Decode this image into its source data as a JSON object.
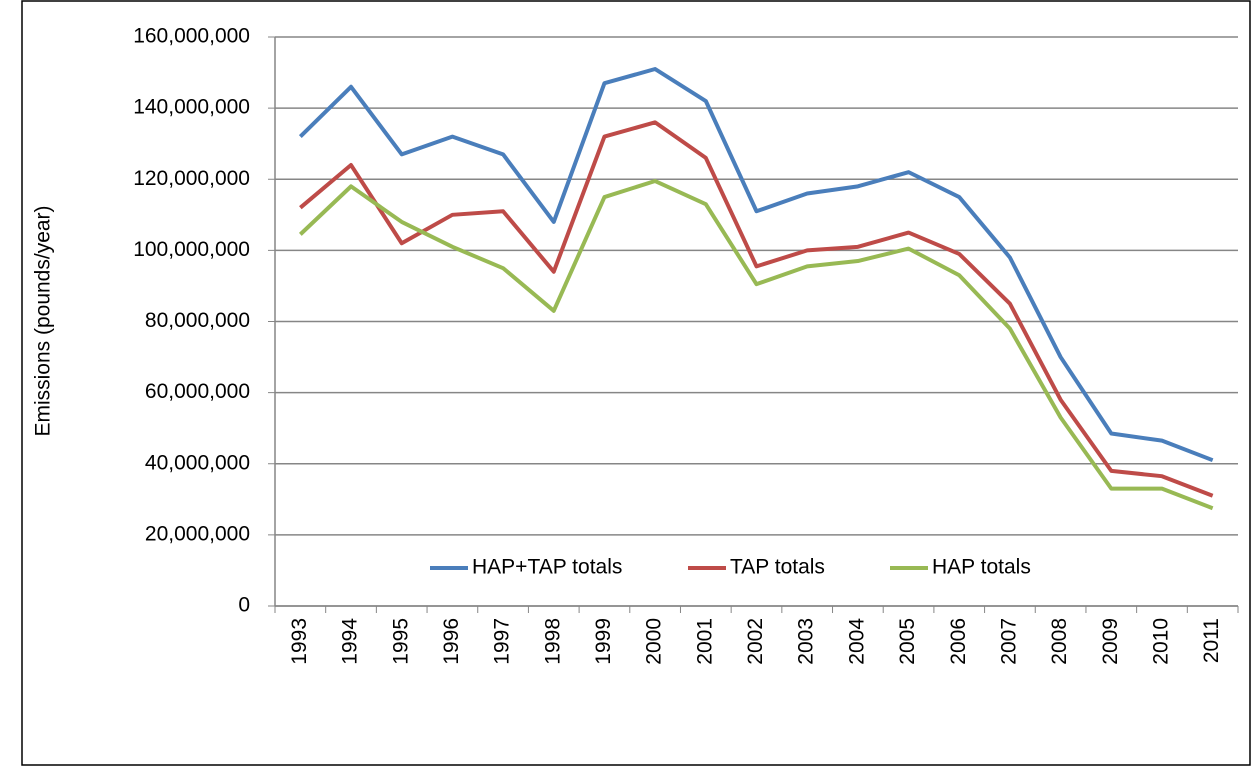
{
  "chart_data": {
    "type": "line",
    "y_label": "Emissions (pounds/year)",
    "categories": [
      "1993",
      "1994",
      "1995",
      "1996",
      "1997",
      "1998",
      "1999",
      "2000",
      "2001",
      "2002",
      "2003",
      "2004",
      "2005",
      "2006",
      "2007",
      "2008",
      "2009",
      "2010",
      "2011"
    ],
    "series": [
      {
        "name": "HAP+TAP totals",
        "color": "#4a7ebb",
        "values": [
          132000000,
          146000000,
          127000000,
          132000000,
          127000000,
          108000000,
          147000000,
          151000000,
          142000000,
          111000000,
          116000000,
          118000000,
          122000000,
          115000000,
          98000000,
          70000000,
          48500000,
          46500000,
          41000000
        ]
      },
      {
        "name": "TAP totals",
        "color": "#be4b48",
        "values": [
          112000000,
          124000000,
          102000000,
          110000000,
          111000000,
          94000000,
          132000000,
          136000000,
          126000000,
          95500000,
          100000000,
          101000000,
          105000000,
          99000000,
          85000000,
          58000000,
          38000000,
          36500000,
          31000000
        ]
      },
      {
        "name": "HAP totals",
        "color": "#98b954",
        "values": [
          104500000,
          118000000,
          108000000,
          101000000,
          95000000,
          83000000,
          115000000,
          119500000,
          113000000,
          90500000,
          95500000,
          97000000,
          100500000,
          93000000,
          78000000,
          53000000,
          33000000,
          33000000,
          27500000
        ]
      }
    ],
    "ylim": [
      0,
      160000000
    ],
    "yticks": [
      0,
      {
        "value": 20000000,
        "label": "20,000,000"
      },
      {
        "value": 40000000,
        "label": "40,000,000"
      },
      {
        "value": 60000000,
        "label": "60,000,000"
      },
      {
        "value": 80000000,
        "label": "80,000,000"
      },
      {
        "value": 100000000,
        "label": "100,000,000"
      },
      {
        "value": 120000000,
        "label": "120,000,000"
      },
      {
        "value": 140000000,
        "label": "140,000,000"
      },
      {
        "value": 160000000,
        "label": "160,000,000"
      }
    ],
    "grid": true,
    "legend": "bottom"
  }
}
